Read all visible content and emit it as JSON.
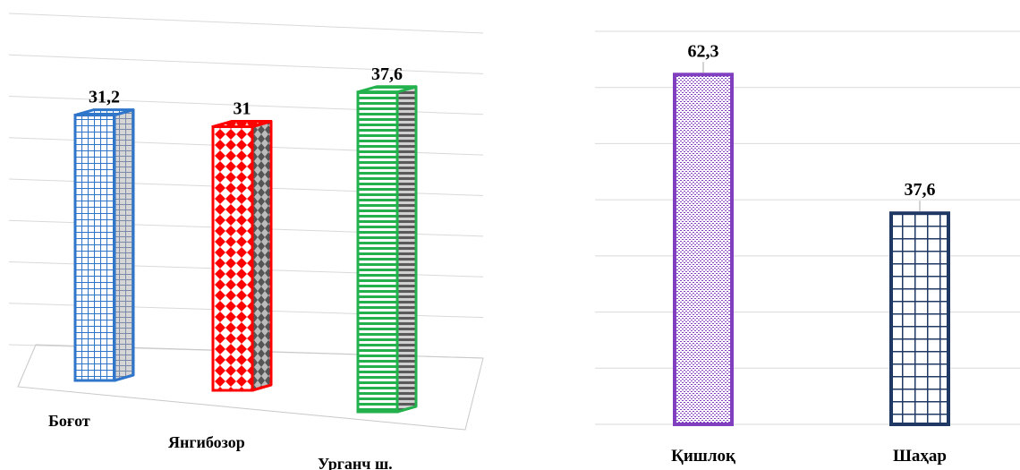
{
  "chart_data": [
    {
      "type": "bar",
      "style": "3d",
      "categories": [
        "Боғот",
        "Янгибозор",
        "Урганч ш."
      ],
      "values": [
        31.2,
        31,
        37.6
      ],
      "value_labels": [
        "31,2",
        "31",
        "37,6"
      ],
      "ylim": [
        0,
        40
      ],
      "grid": true,
      "colors": [
        "#2F75C9",
        "#FF0000",
        "#22B14C"
      ],
      "patterns": [
        "grid-fine",
        "diamonds",
        "horizontal-lines"
      ]
    },
    {
      "type": "bar",
      "categories": [
        "Қишлоқ",
        "Шаҳар"
      ],
      "values": [
        62.3,
        37.6
      ],
      "value_labels": [
        "62,3",
        "37,6"
      ],
      "ylim": [
        0,
        70
      ],
      "grid": true,
      "colors": [
        "#7F3FBF",
        "#1F3864"
      ],
      "patterns": [
        "dotted-weave",
        "grid-large"
      ]
    }
  ]
}
